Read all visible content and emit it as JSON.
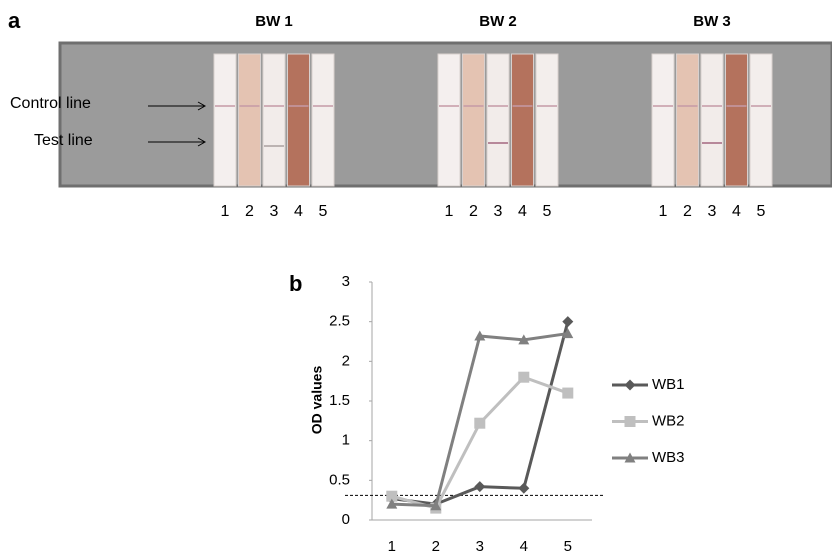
{
  "panel_a": {
    "label": "a",
    "control_label": "Control line",
    "test_label": "Test line",
    "groups": [
      {
        "title": "BW 1",
        "lanes": [
          "1",
          "2",
          "3",
          "4",
          "5"
        ]
      },
      {
        "title": "BW 2",
        "lanes": [
          "1",
          "2",
          "3",
          "4",
          "5"
        ]
      },
      {
        "title": "BW 3",
        "lanes": [
          "1",
          "2",
          "3",
          "4",
          "5"
        ]
      }
    ]
  },
  "chart_data": {
    "type": "line",
    "panel_label": "b",
    "y_label": "OD values",
    "categories": [
      "1",
      "2",
      "3",
      "4",
      "5"
    ],
    "series": [
      {
        "name": "WB1",
        "color": "#595959",
        "marker": "diamond",
        "values": [
          0.27,
          0.2,
          0.42,
          0.4,
          2.5
        ]
      },
      {
        "name": "WB2",
        "color": "#bfbfbf",
        "marker": "square",
        "values": [
          0.3,
          0.15,
          1.22,
          1.8,
          1.6
        ]
      },
      {
        "name": "WB3",
        "color": "#808080",
        "marker": "triangle",
        "values": [
          0.2,
          0.18,
          2.32,
          2.27,
          2.35
        ]
      }
    ],
    "ylim": [
      0,
      3
    ],
    "yticks": [
      0,
      0.5,
      1,
      1.5,
      2,
      2.5,
      3
    ],
    "reference_line": 0.31,
    "legend": "right"
  }
}
